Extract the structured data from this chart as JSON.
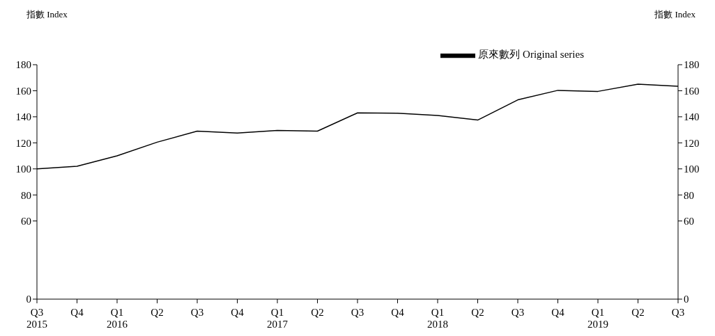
{
  "chart_data": {
    "type": "line",
    "ylabel": "指數 Index",
    "y2label": "指數 Index",
    "categories": [
      "Q3\n2015",
      "Q4",
      "Q1\n2016",
      "Q2",
      "Q3",
      "Q4",
      "Q1\n2017",
      "Q2",
      "Q3",
      "Q4",
      "Q1\n2018",
      "Q2",
      "Q3",
      "Q4",
      "Q1\n2019",
      "Q2",
      "Q3"
    ],
    "series": [
      {
        "name": "原來數列 Original series",
        "color": "#000000",
        "values": [
          100,
          102,
          110,
          120.5,
          129,
          127.5,
          129.5,
          129,
          143,
          142.7,
          141,
          137.5,
          153,
          160.3,
          159.5,
          165,
          163.5
        ]
      }
    ],
    "ylim": [
      0,
      180
    ],
    "yticks": [
      0,
      60,
      80,
      100,
      120,
      140,
      160,
      180
    ],
    "y2lim": [
      0,
      180
    ],
    "y2ticks": [
      0,
      60,
      80,
      100,
      120,
      140,
      160,
      180
    ],
    "legend": "top right",
    "grid": false,
    "marker": "none",
    "line_style": "solid"
  }
}
